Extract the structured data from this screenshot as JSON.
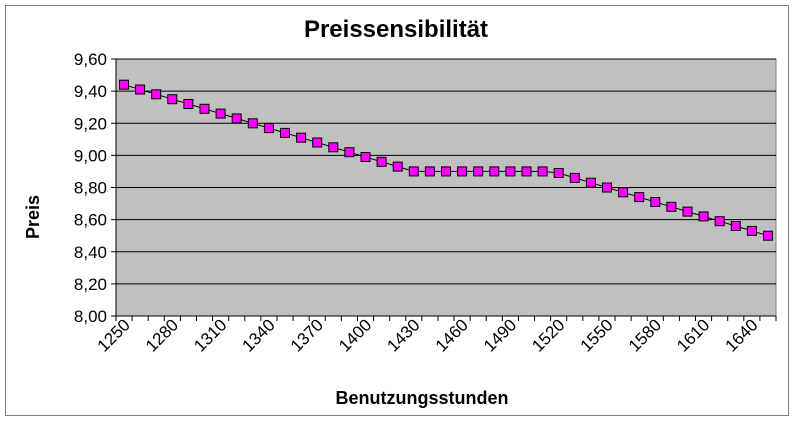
{
  "chart_data": {
    "type": "line",
    "title": "Preissensibilität",
    "xlabel": "Benutzungsstunden",
    "ylabel": "Preis",
    "ylim": [
      8.0,
      9.6
    ],
    "y_ticks": [
      "8,00",
      "8,20",
      "8,40",
      "8,60",
      "8,80",
      "9,00",
      "9,20",
      "9,40",
      "9,60"
    ],
    "x_tick_labels": [
      "1250",
      "1280",
      "1310",
      "1340",
      "1370",
      "1400",
      "1430",
      "1460",
      "1490",
      "1520",
      "1550",
      "1580",
      "1610",
      "1640"
    ],
    "grid": true,
    "legend": "none",
    "colors": {
      "plot_background": "#c0c0c0",
      "gridline": "#000000",
      "line": "#000000",
      "marker": "#ff00ff",
      "marker_edge": "#000000"
    },
    "x": [
      1250,
      1260,
      1270,
      1280,
      1290,
      1300,
      1310,
      1320,
      1330,
      1340,
      1350,
      1360,
      1370,
      1380,
      1390,
      1400,
      1410,
      1420,
      1430,
      1440,
      1450,
      1460,
      1470,
      1480,
      1490,
      1500,
      1510,
      1520,
      1530,
      1540,
      1550,
      1560,
      1570,
      1580,
      1590,
      1600,
      1610,
      1620,
      1630,
      1640,
      1650
    ],
    "series": [
      {
        "values": [
          9.44,
          9.41,
          9.38,
          9.35,
          9.32,
          9.29,
          9.26,
          9.23,
          9.2,
          9.17,
          9.14,
          9.11,
          9.08,
          9.05,
          9.02,
          8.99,
          8.96,
          8.93,
          8.9,
          8.9,
          8.9,
          8.9,
          8.9,
          8.9,
          8.9,
          8.9,
          8.9,
          8.89,
          8.86,
          8.83,
          8.8,
          8.77,
          8.74,
          8.71,
          8.68,
          8.65,
          8.62,
          8.59,
          8.56,
          8.53,
          8.5
        ]
      }
    ]
  }
}
